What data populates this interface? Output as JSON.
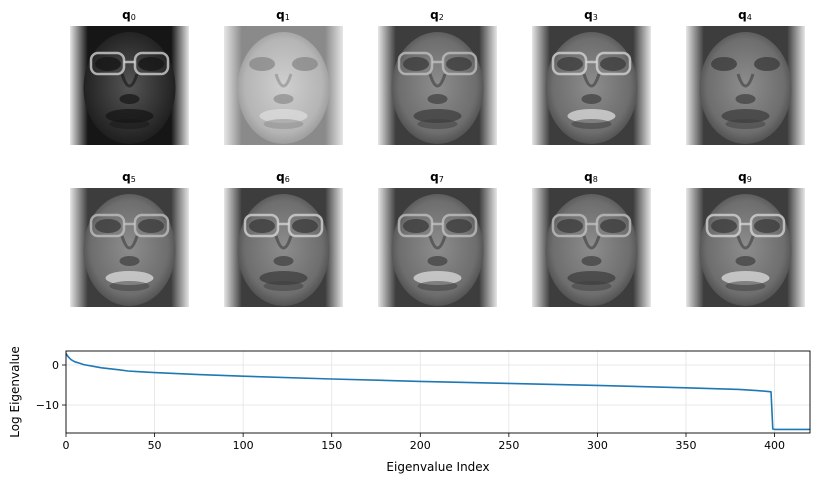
{
  "faces": [
    {
      "id": "q0",
      "letter": "q",
      "index": "0",
      "tone": "dark",
      "glasses": true
    },
    {
      "id": "q1",
      "letter": "q",
      "index": "1",
      "tone": "light",
      "glasses": false
    },
    {
      "id": "q2",
      "letter": "q",
      "index": "2",
      "tone": "mid",
      "glasses": true
    },
    {
      "id": "q3",
      "letter": "q",
      "index": "3",
      "tone": "mid",
      "glasses": true
    },
    {
      "id": "q4",
      "letter": "q",
      "index": "4",
      "tone": "mid",
      "glasses": false
    },
    {
      "id": "q5",
      "letter": "q",
      "index": "5",
      "tone": "mid",
      "glasses": true
    },
    {
      "id": "q6",
      "letter": "q",
      "index": "6",
      "tone": "mid",
      "glasses": true
    },
    {
      "id": "q7",
      "letter": "q",
      "index": "7",
      "tone": "mid",
      "glasses": true
    },
    {
      "id": "q8",
      "letter": "q",
      "index": "8",
      "tone": "mid",
      "glasses": true
    },
    {
      "id": "q9",
      "letter": "q",
      "index": "9",
      "tone": "mid",
      "glasses": true
    }
  ],
  "chart_data": {
    "type": "line",
    "xlabel": "Eigenvalue Index",
    "ylabel": "Log Eigenvalue",
    "xlim": [
      0,
      420
    ],
    "ylim": [
      -17,
      3.5
    ],
    "xticks": [
      0,
      50,
      100,
      150,
      200,
      250,
      300,
      350,
      400
    ],
    "yticks": [
      0,
      -10
    ],
    "grid": true,
    "line_color": "#1f77b4",
    "series": [
      {
        "x": [
          0,
          1,
          2,
          3,
          5,
          8,
          10,
          15,
          20,
          25,
          30,
          35,
          40,
          50,
          75,
          100,
          150,
          200,
          250,
          300,
          350,
          380,
          390,
          396,
          398,
          399,
          400,
          410,
          420
        ],
        "values": [
          2.9,
          2.2,
          1.7,
          1.3,
          0.8,
          0.4,
          0.1,
          -0.3,
          -0.7,
          -0.95,
          -1.2,
          -1.5,
          -1.65,
          -1.9,
          -2.4,
          -2.8,
          -3.5,
          -4.1,
          -4.6,
          -5.1,
          -5.7,
          -6.1,
          -6.4,
          -6.6,
          -6.7,
          -16.0,
          -16.1,
          -16.1,
          -16.1
        ]
      }
    ]
  }
}
